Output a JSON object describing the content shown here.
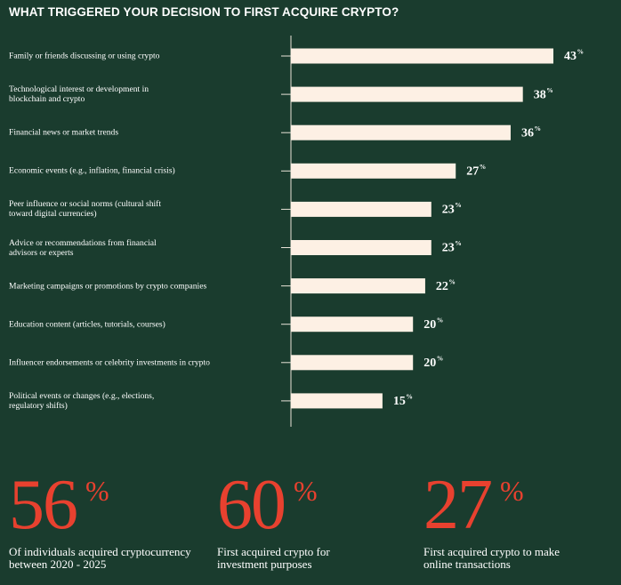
{
  "chart_data": {
    "type": "bar",
    "orientation": "horizontal",
    "title": "WHAT TRIGGERED YOUR DECISION TO FIRST ACQUIRE CRYPTO?",
    "categories": [
      "Family or friends discussing or using crypto",
      "Technological interest or development in blockchain and crypto",
      "Financial news or market trends",
      "Economic events (e.g., inflation, financial crisis)",
      "Peer influence or social norms (cultural shift toward digital currencies)",
      "Advice or recommendations from financial advisors or experts",
      "Marketing campaigns or promotions by crypto companies",
      "Education content (articles, tutorials, courses)",
      "Influencer endorsements or celebrity investments in crypto",
      "Political events or changes (e.g., elections, regulatory shifts)"
    ],
    "values": [
      43,
      38,
      36,
      27,
      23,
      23,
      22,
      20,
      20,
      15
    ],
    "unit": "%",
    "color": "#fdf0e4"
  },
  "stats": [
    {
      "value": 56,
      "unit": "%",
      "label": "Of individuals acquired cryptocurrency between 2020 - 2025"
    },
    {
      "value": 60,
      "unit": "%",
      "label": "First acquired crypto for investment purposes"
    },
    {
      "value": 27,
      "unit": "%",
      "label": "First acquired crypto to make online transactions"
    }
  ]
}
